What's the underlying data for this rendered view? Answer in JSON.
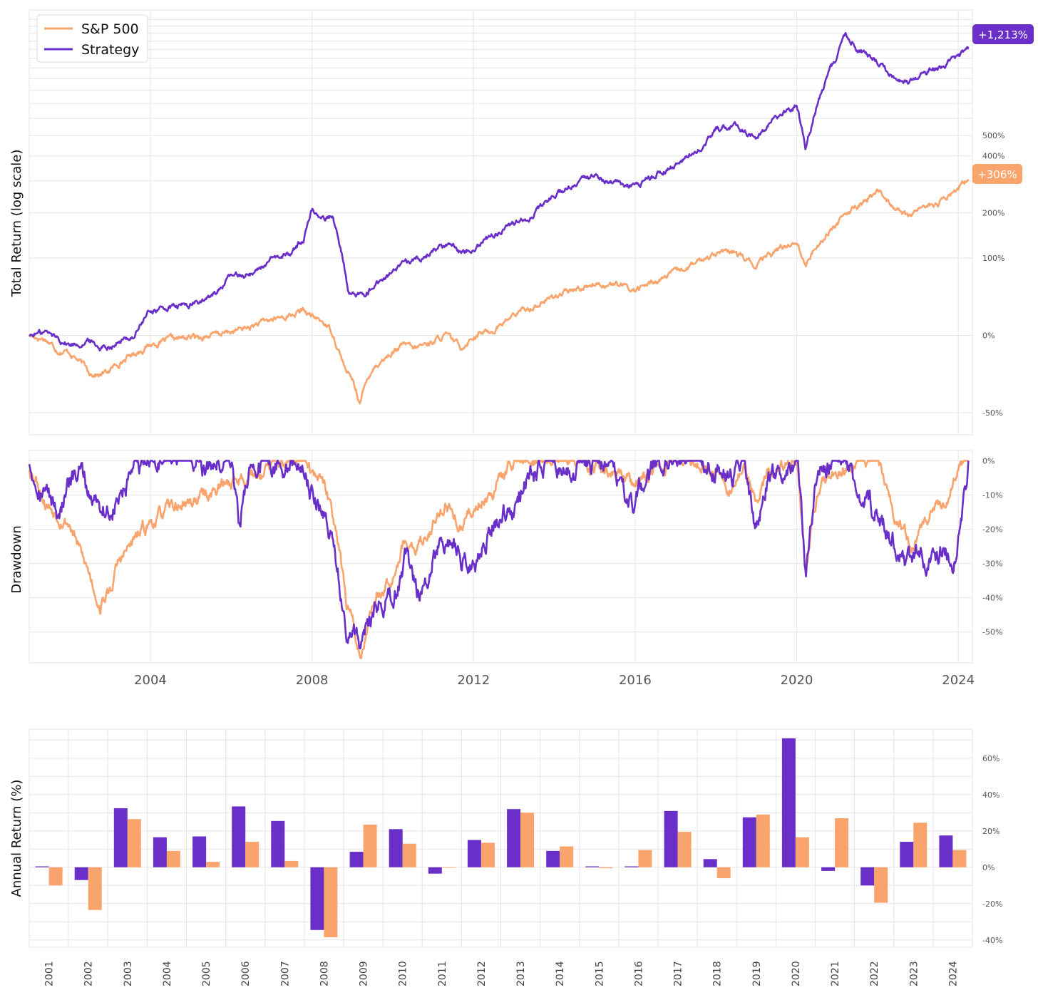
{
  "colors": {
    "sp500": "#f9a46c",
    "strategy": "#6a2fc8"
  },
  "chart_data": [
    {
      "type": "line",
      "ylabel": "Total Return (log scale)",
      "yscale": "log",
      "xlim": [
        2001.0,
        2024.35
      ],
      "ylim": [
        -59,
        1750
      ],
      "ytick_labels": [
        "500%",
        "400%",
        "200%",
        "100%",
        "0%",
        "-50%"
      ],
      "ytick_values": [
        500,
        400,
        200,
        100,
        0,
        -50
      ],
      "grid": true,
      "legend": {
        "placement": "top-left",
        "entries": [
          "S&P 500",
          "Strategy"
        ]
      },
      "series": [
        {
          "name": "S&P 500",
          "color": "#f9a46c",
          "end_label": "+306%",
          "x": [
            2001.0,
            2001.4,
            2001.7,
            2002.0,
            2002.5,
            2002.75,
            2003.0,
            2003.2,
            2003.6,
            2004.0,
            2004.5,
            2005.0,
            2005.5,
            2006.0,
            2006.5,
            2007.0,
            2007.5,
            2007.8,
            2008.0,
            2008.3,
            2008.5,
            2008.7,
            2008.85,
            2009.0,
            2009.19,
            2009.5,
            2010.0,
            2010.3,
            2010.5,
            2011.0,
            2011.3,
            2011.7,
            2012.0,
            2012.5,
            2013.0,
            2013.5,
            2014.0,
            2014.5,
            2015.0,
            2015.5,
            2016.0,
            2016.5,
            2017.0,
            2017.5,
            2018.0,
            2018.5,
            2018.98,
            2019.5,
            2020.0,
            2020.22,
            2020.5,
            2021.0,
            2021.5,
            2022.0,
            2022.5,
            2022.8,
            2023.0,
            2023.5,
            2024.0,
            2024.25
          ],
          "values": [
            0,
            -3,
            -12,
            -14,
            -28,
            -30,
            -27,
            -22,
            -15,
            -8,
            -4,
            -2,
            0,
            3,
            8,
            15,
            20,
            25,
            18,
            12,
            3,
            -15,
            -28,
            -33,
            -45,
            -25,
            -14,
            -8,
            -12,
            -5,
            0,
            -10,
            0,
            5,
            20,
            30,
            42,
            50,
            60,
            58,
            50,
            62,
            75,
            90,
            112,
            108,
            85,
            115,
            135,
            85,
            125,
            175,
            215,
            265,
            210,
            185,
            215,
            225,
            270,
            306
          ]
        },
        {
          "name": "Strategy",
          "color": "#6a2fc8",
          "end_label": "+1,213%",
          "x": [
            2001.0,
            2001.4,
            2001.7,
            2002.0,
            2002.5,
            2002.75,
            2003.0,
            2003.3,
            2003.6,
            2004.0,
            2004.5,
            2005.0,
            2005.5,
            2006.0,
            2006.5,
            2007.0,
            2007.5,
            2007.8,
            2008.0,
            2008.3,
            2008.5,
            2008.75,
            2008.9,
            2009.19,
            2009.5,
            2010.0,
            2010.5,
            2011.0,
            2011.5,
            2011.7,
            2012.0,
            2012.5,
            2013.0,
            2013.5,
            2014.0,
            2014.5,
            2015.0,
            2015.5,
            2016.0,
            2016.5,
            2017.0,
            2017.5,
            2018.0,
            2018.5,
            2018.98,
            2019.5,
            2020.0,
            2020.22,
            2020.5,
            2021.0,
            2021.2,
            2021.5,
            2022.0,
            2022.5,
            2022.75,
            2023.0,
            2023.5,
            2024.0,
            2024.25
          ],
          "values": [
            0,
            3,
            -2,
            -8,
            -5,
            -10,
            -8,
            -5,
            0,
            25,
            28,
            32,
            40,
            70,
            75,
            95,
            110,
            140,
            210,
            185,
            190,
            110,
            48,
            42,
            55,
            75,
            95,
            115,
            130,
            110,
            125,
            145,
            175,
            200,
            255,
            280,
            320,
            290,
            275,
            320,
            360,
            420,
            530,
            560,
            480,
            600,
            690,
            410,
            700,
            1100,
            1400,
            1200,
            1050,
            900,
            850,
            950,
            1000,
            1100,
            1213
          ]
        }
      ]
    },
    {
      "type": "line",
      "ylabel": "Drawdown",
      "xlim": [
        2001.0,
        2024.35
      ],
      "ylim": [
        -59,
        3
      ],
      "ytick_labels": [
        "0%",
        "-10%",
        "-20%",
        "-30%",
        "-40%",
        "-50%"
      ],
      "ytick_values": [
        0,
        -10,
        -20,
        -30,
        -40,
        -50
      ],
      "xtick_labels": [
        "2004",
        "2008",
        "2012",
        "2016",
        "2020",
        "2024"
      ],
      "xtick_values": [
        2004,
        2008,
        2012,
        2016,
        2020,
        2024
      ],
      "grid": true,
      "series": [
        {
          "name": "S&P 500",
          "color": "#f9a46c",
          "x": [
            2001.0,
            2001.2,
            2001.4,
            2001.7,
            2002.0,
            2002.3,
            2002.55,
            2002.75,
            2003.0,
            2003.2,
            2003.5,
            2004.0,
            2004.5,
            2005.0,
            2005.5,
            2006.0,
            2006.5,
            2007.0,
            2007.4,
            2007.8,
            2008.0,
            2008.3,
            2008.5,
            2008.7,
            2008.85,
            2009.0,
            2009.19,
            2009.5,
            2010.0,
            2010.3,
            2010.5,
            2011.0,
            2011.3,
            2011.7,
            2012.0,
            2012.5,
            2013.0,
            2013.5,
            2014.0,
            2014.5,
            2015.0,
            2015.5,
            2016.0,
            2016.5,
            2017.0,
            2018.0,
            2018.3,
            2018.7,
            2018.98,
            2019.3,
            2020.0,
            2020.22,
            2020.5,
            2021.0,
            2021.5,
            2022.0,
            2022.3,
            2022.5,
            2022.8,
            2023.0,
            2023.5,
            2023.8,
            2024.0,
            2024.25
          ],
          "values": [
            -2,
            -5,
            -12,
            -15,
            -18,
            -28,
            -35,
            -42,
            -38,
            -30,
            -25,
            -18,
            -14,
            -12,
            -9,
            -6,
            -4,
            -2,
            0,
            0,
            -4,
            -8,
            -15,
            -25,
            -42,
            -47,
            -57,
            -42,
            -32,
            -22,
            -28,
            -18,
            -12,
            -20,
            -14,
            -8,
            0,
            0,
            0,
            0,
            -2,
            -4,
            -8,
            -2,
            0,
            -1,
            -8,
            -2,
            -12,
            -3,
            0,
            -33,
            -10,
            -2,
            0,
            0,
            -10,
            -18,
            -25,
            -22,
            -15,
            -8,
            -2,
            0
          ]
        },
        {
          "name": "Strategy",
          "color": "#6a2fc8",
          "x": [
            2001.0,
            2001.2,
            2001.4,
            2001.7,
            2002.0,
            2002.3,
            2002.5,
            2002.75,
            2003.0,
            2003.3,
            2003.6,
            2004.0,
            2004.5,
            2005.0,
            2005.5,
            2006.0,
            2006.2,
            2006.5,
            2007.0,
            2007.4,
            2007.8,
            2008.0,
            2008.3,
            2008.5,
            2008.75,
            2008.9,
            2009.19,
            2009.5,
            2010.0,
            2010.3,
            2010.7,
            2011.0,
            2011.5,
            2011.7,
            2012.0,
            2012.5,
            2013.0,
            2013.3,
            2013.7,
            2014.0,
            2014.5,
            2015.0,
            2015.5,
            2016.0,
            2016.5,
            2017.0,
            2017.5,
            2018.0,
            2018.3,
            2018.7,
            2018.98,
            2019.3,
            2020.0,
            2020.22,
            2020.5,
            2021.0,
            2021.2,
            2021.5,
            2022.0,
            2022.5,
            2022.7,
            2023.0,
            2023.3,
            2023.6,
            2023.9,
            2024.1,
            2024.25
          ],
          "values": [
            0,
            -5,
            -8,
            -15,
            -8,
            -4,
            -10,
            -12,
            -15,
            -10,
            -5,
            0,
            0,
            0,
            -2,
            0,
            -18,
            0,
            0,
            0,
            0,
            -10,
            -15,
            -22,
            -40,
            -50,
            -52,
            -45,
            -38,
            -30,
            -40,
            -28,
            -22,
            -30,
            -28,
            -18,
            -12,
            -5,
            -2,
            0,
            -3,
            0,
            -5,
            -12,
            -2,
            0,
            0,
            -2,
            -5,
            -3,
            -20,
            -5,
            0,
            -33,
            -5,
            0,
            0,
            -10,
            -15,
            -25,
            -32,
            -28,
            -30,
            -26,
            -28,
            -15,
            -2
          ]
        }
      ]
    },
    {
      "type": "bar",
      "ylabel": "Annual Return (%)",
      "categories": [
        "2001",
        "2002",
        "2003",
        "2004",
        "2005",
        "2006",
        "2007",
        "2008",
        "2009",
        "2010",
        "2011",
        "2012",
        "2013",
        "2014",
        "2015",
        "2016",
        "2017",
        "2018",
        "2019",
        "2020",
        "2021",
        "2022",
        "2023",
        "2024"
      ],
      "ylim": [
        -44,
        76
      ],
      "ytick_labels": [
        "60%",
        "40%",
        "20%",
        "0%",
        "-20%",
        "-40%"
      ],
      "ytick_values": [
        60,
        40,
        20,
        0,
        -20,
        -40
      ],
      "grid": true,
      "series": [
        {
          "name": "Strategy",
          "color": "#6a2fc8",
          "values": [
            0.5,
            -7.0,
            32.5,
            16.5,
            17.0,
            33.5,
            25.5,
            -34.5,
            8.5,
            21.0,
            -3.5,
            15.0,
            32.0,
            9.0,
            0.5,
            0.5,
            31.0,
            4.5,
            27.5,
            71.0,
            -2.0,
            -10.0,
            14.0,
            17.5
          ]
        },
        {
          "name": "S&P 500",
          "color": "#f9a46c",
          "values": [
            -10.0,
            -23.5,
            26.5,
            9.0,
            3.0,
            14.0,
            3.5,
            -38.5,
            23.5,
            13.0,
            0.0,
            13.5,
            30.0,
            11.5,
            -0.5,
            9.5,
            19.5,
            -6.0,
            29.0,
            16.5,
            27.0,
            -19.5,
            24.5,
            9.5
          ]
        }
      ]
    }
  ]
}
